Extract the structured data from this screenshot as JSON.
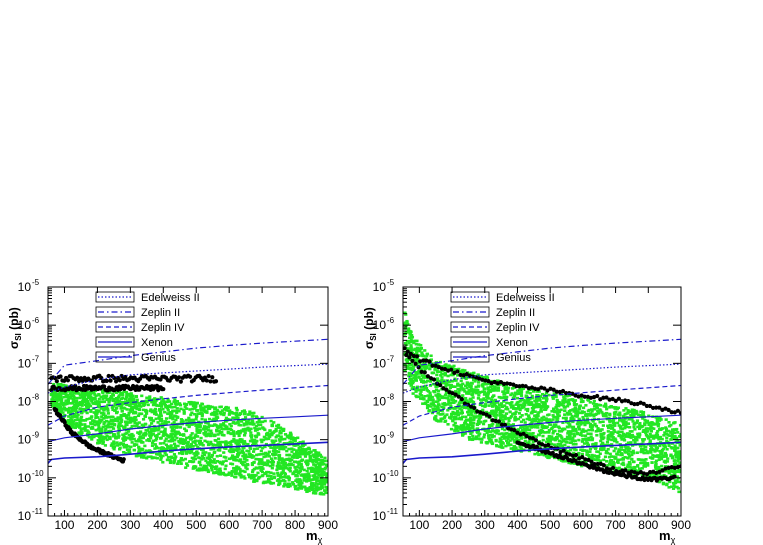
{
  "chart_data": [
    {
      "type": "scatter",
      "ylabel": "σSI (pb)",
      "xlabel": "mχ",
      "yscale": "log",
      "xlim": [
        50,
        900
      ],
      "ylim_exp": [
        -11,
        -5
      ],
      "xticks": [
        100,
        200,
        300,
        400,
        500,
        600,
        700,
        800,
        900
      ],
      "ytick_exps": [
        -11,
        -10,
        -9,
        -8,
        -7,
        -6,
        -5
      ],
      "legend_position": "top",
      "limit_curves": [
        {
          "name": "Edelweiss II",
          "style": "dotted",
          "color": "#1a1acc",
          "points": [
            [
              50,
              -7.78
            ],
            [
              100,
              -7.62
            ],
            [
              200,
              -7.43
            ],
            [
              300,
              -7.3
            ],
            [
              400,
              -7.25
            ],
            [
              500,
              -7.2
            ],
            [
              600,
              -7.15
            ],
            [
              700,
              -7.1
            ],
            [
              800,
              -7.06
            ],
            [
              900,
              -7.02
            ]
          ]
        },
        {
          "name": "Zeplin II",
          "style": "dashdot",
          "color": "#1a1acc",
          "points": [
            [
              50,
              -7.55
            ],
            [
              100,
              -7.05
            ],
            [
              200,
              -6.93
            ],
            [
              300,
              -6.8
            ],
            [
              400,
              -6.7
            ],
            [
              500,
              -6.6
            ],
            [
              600,
              -6.53
            ],
            [
              700,
              -6.47
            ],
            [
              800,
              -6.42
            ],
            [
              900,
              -6.37
            ]
          ]
        },
        {
          "name": "Zeplin IV",
          "style": "dashed",
          "color": "#1a1acc",
          "points": [
            [
              50,
              -8.62
            ],
            [
              100,
              -8.38
            ],
            [
              200,
              -8.15
            ],
            [
              300,
              -8.03
            ],
            [
              400,
              -7.93
            ],
            [
              500,
              -7.84
            ],
            [
              600,
              -7.77
            ],
            [
              700,
              -7.7
            ],
            [
              800,
              -7.64
            ],
            [
              900,
              -7.58
            ]
          ]
        },
        {
          "name": "Xenon",
          "style": "solid",
          "color": "#1a1acc",
          "points": [
            [
              50,
              -9.05
            ],
            [
              100,
              -8.95
            ],
            [
              200,
              -8.85
            ],
            [
              300,
              -8.72
            ],
            [
              400,
              -8.63
            ],
            [
              500,
              -8.55
            ],
            [
              600,
              -8.49
            ],
            [
              700,
              -8.44
            ],
            [
              800,
              -8.4
            ],
            [
              900,
              -8.36
            ]
          ]
        },
        {
          "name": "Genius",
          "style": "solid",
          "color": "#1a1acc",
          "points": [
            [
              50,
              -9.62
            ],
            [
              60,
              -9.52
            ],
            [
              100,
              -9.48
            ],
            [
              200,
              -9.45
            ],
            [
              300,
              -9.38
            ],
            [
              400,
              -9.3
            ],
            [
              500,
              -9.24
            ],
            [
              600,
              -9.19
            ],
            [
              700,
              -9.15
            ],
            [
              800,
              -9.11
            ],
            [
              900,
              -9.07
            ]
          ]
        }
      ],
      "scan_regions": [
        {
          "color": "#22e622",
          "x": [
            [
              60,
              -7.5
            ],
            [
              120,
              -7.6
            ],
            [
              250,
              -7.7
            ],
            [
              400,
              -7.9
            ],
            [
              550,
              -8.1
            ],
            [
              650,
              -8.2
            ],
            [
              750,
              -8.6
            ],
            [
              850,
              -9.2
            ],
            [
              900,
              -9.5
            ]
          ],
          "bottom": [
            [
              60,
              -8.1
            ],
            [
              120,
              -8.7
            ],
            [
              200,
              -9.1
            ],
            [
              300,
              -9.4
            ],
            [
              400,
              -9.6
            ],
            [
              500,
              -9.8
            ],
            [
              600,
              -9.95
            ],
            [
              700,
              -10.15
            ],
            [
              800,
              -10.3
            ],
            [
              850,
              -10.4
            ],
            [
              900,
              -10.45
            ]
          ]
        }
      ],
      "black_points": [
        {
          "x0": 60,
          "x1": 560,
          "y": -7.4,
          "jitter": 0.08
        },
        {
          "x0": 60,
          "x1": 400,
          "y": -7.65,
          "jitter": 0.06
        },
        {
          "x0": 70,
          "x1": 280,
          "curve": [
            [
              70,
              -8.2
            ],
            [
              120,
              -8.8
            ],
            [
              180,
              -9.2
            ],
            [
              250,
              -9.45
            ],
            [
              280,
              -9.55
            ]
          ]
        }
      ]
    },
    {
      "type": "scatter",
      "ylabel": "σSI (pb)",
      "xlabel": "mχ",
      "yscale": "log",
      "xlim": [
        50,
        900
      ],
      "ylim_exp": [
        -11,
        -5
      ],
      "xticks": [
        100,
        200,
        300,
        400,
        500,
        600,
        700,
        800,
        900
      ],
      "ytick_exps": [
        -11,
        -10,
        -9,
        -8,
        -7,
        -6,
        -5
      ],
      "legend_position": "top",
      "limit_curves": [
        {
          "name": "Edelweiss II",
          "style": "dotted",
          "color": "#1a1acc",
          "points": [
            [
              50,
              -7.78
            ],
            [
              100,
              -7.62
            ],
            [
              200,
              -7.43
            ],
            [
              300,
              -7.3
            ],
            [
              400,
              -7.25
            ],
            [
              500,
              -7.2
            ],
            [
              600,
              -7.15
            ],
            [
              700,
              -7.1
            ],
            [
              800,
              -7.06
            ],
            [
              900,
              -7.02
            ]
          ]
        },
        {
          "name": "Zeplin II",
          "style": "dashdot",
          "color": "#1a1acc",
          "points": [
            [
              50,
              -7.55
            ],
            [
              100,
              -7.05
            ],
            [
              200,
              -6.93
            ],
            [
              300,
              -6.8
            ],
            [
              400,
              -6.7
            ],
            [
              500,
              -6.6
            ],
            [
              600,
              -6.53
            ],
            [
              700,
              -6.47
            ],
            [
              800,
              -6.42
            ],
            [
              900,
              -6.37
            ]
          ]
        },
        {
          "name": "Zeplin IV",
          "style": "dashed",
          "color": "#1a1acc",
          "points": [
            [
              50,
              -8.62
            ],
            [
              100,
              -8.38
            ],
            [
              200,
              -8.15
            ],
            [
              300,
              -8.03
            ],
            [
              400,
              -7.93
            ],
            [
              500,
              -7.84
            ],
            [
              600,
              -7.77
            ],
            [
              700,
              -7.7
            ],
            [
              800,
              -7.64
            ],
            [
              900,
              -7.58
            ]
          ]
        },
        {
          "name": "Xenon",
          "style": "solid",
          "color": "#1a1acc",
          "points": [
            [
              50,
              -9.05
            ],
            [
              100,
              -8.95
            ],
            [
              200,
              -8.85
            ],
            [
              300,
              -8.72
            ],
            [
              400,
              -8.63
            ],
            [
              500,
              -8.55
            ],
            [
              600,
              -8.49
            ],
            [
              700,
              -8.44
            ],
            [
              800,
              -8.4
            ],
            [
              900,
              -8.36
            ]
          ]
        },
        {
          "name": "Genius",
          "style": "solid",
          "color": "#1a1acc",
          "points": [
            [
              50,
              -9.62
            ],
            [
              60,
              -9.52
            ],
            [
              100,
              -9.48
            ],
            [
              200,
              -9.45
            ],
            [
              300,
              -9.38
            ],
            [
              400,
              -9.3
            ],
            [
              500,
              -9.24
            ],
            [
              600,
              -9.19
            ],
            [
              700,
              -9.15
            ],
            [
              800,
              -9.11
            ],
            [
              900,
              -9.07
            ]
          ]
        }
      ],
      "scan_regions": [
        {
          "color": "#22e622",
          "x": [
            [
              55,
              -5.6
            ],
            [
              80,
              -6.3
            ],
            [
              150,
              -6.9
            ],
            [
              250,
              -7.2
            ],
            [
              400,
              -7.6
            ],
            [
              600,
              -7.9
            ],
            [
              800,
              -8.3
            ],
            [
              900,
              -8.6
            ]
          ],
          "bottom": [
            [
              55,
              -7.2
            ],
            [
              80,
              -7.8
            ],
            [
              150,
              -8.5
            ],
            [
              250,
              -9.0
            ],
            [
              400,
              -9.3
            ],
            [
              500,
              -9.5
            ],
            [
              600,
              -9.7
            ],
            [
              700,
              -9.85
            ],
            [
              800,
              -10.0
            ],
            [
              900,
              -10.4
            ]
          ]
        }
      ],
      "black_points": [
        {
          "x0": 55,
          "x1": 900,
          "curve": [
            [
              55,
              -6.6
            ],
            [
              100,
              -6.9
            ],
            [
              200,
              -7.2
            ],
            [
              300,
              -7.45
            ],
            [
              400,
              -7.6
            ],
            [
              500,
              -7.7
            ],
            [
              600,
              -7.85
            ],
            [
              700,
              -7.95
            ],
            [
              800,
              -8.1
            ],
            [
              900,
              -8.3
            ]
          ]
        },
        {
          "x0": 60,
          "x1": 900,
          "curve": [
            [
              60,
              -6.8
            ],
            [
              100,
              -7.15
            ],
            [
              200,
              -7.8
            ],
            [
              300,
              -8.35
            ],
            [
              400,
              -8.8
            ],
            [
              500,
              -9.2
            ],
            [
              600,
              -9.5
            ],
            [
              700,
              -9.8
            ],
            [
              800,
              -9.9
            ],
            [
              900,
              -9.7
            ]
          ]
        },
        {
          "x0": 400,
          "x1": 880,
          "curve": [
            [
              400,
              -9.05
            ],
            [
              500,
              -9.35
            ],
            [
              600,
              -9.65
            ],
            [
              700,
              -9.9
            ],
            [
              800,
              -10.05
            ],
            [
              880,
              -10.0
            ]
          ]
        }
      ]
    }
  ]
}
